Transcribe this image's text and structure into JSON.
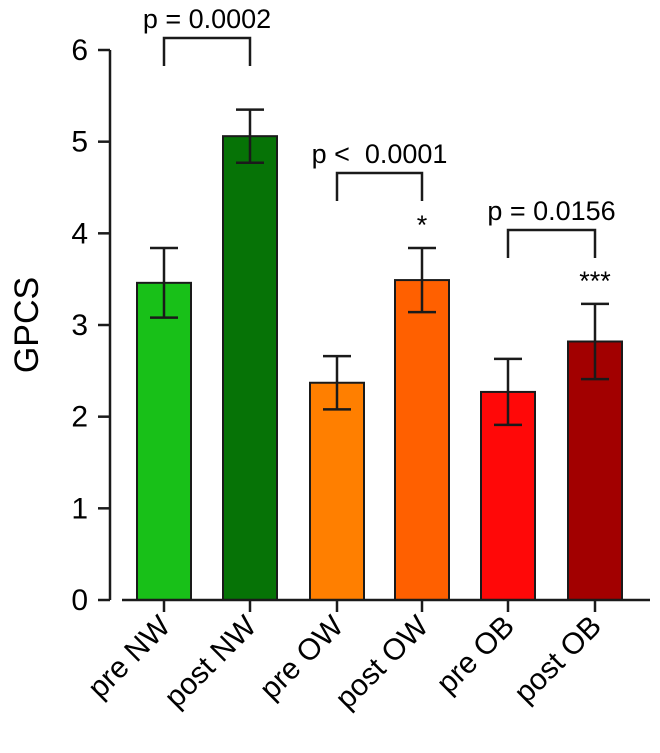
{
  "chart_data": {
    "type": "bar",
    "ylabel": "GPCS",
    "ylim": [
      0,
      6
    ],
    "yticks": [
      "0",
      "1",
      "2",
      "3",
      "4",
      "5",
      "6"
    ],
    "categories": [
      "pre NW",
      "post NW",
      "pre OW",
      "post OW",
      "pre OB",
      "post OB"
    ],
    "values": [
      3.46,
      5.06,
      2.37,
      3.49,
      2.27,
      2.82
    ],
    "errors": [
      0.38,
      0.29,
      0.29,
      0.35,
      0.36,
      0.41
    ],
    "colors": [
      "#18c018",
      "#067306",
      "#ff7f00",
      "#ff6000",
      "#ff0808",
      "#a20000"
    ],
    "significance_marks": [
      "",
      "",
      "",
      "*",
      "",
      "***"
    ],
    "comparisons": [
      {
        "from": 0,
        "to": 1,
        "label": "p = 0.0002"
      },
      {
        "from": 2,
        "to": 3,
        "label": "p <  0.0001"
      },
      {
        "from": 4,
        "to": 5,
        "label": "p = 0.0156"
      }
    ],
    "grid": false,
    "legend": "none"
  }
}
